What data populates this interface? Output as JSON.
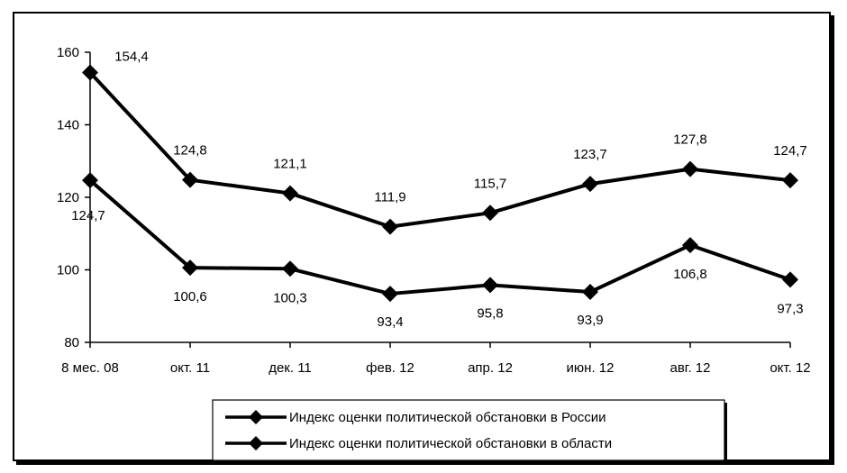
{
  "chart_data": {
    "type": "line",
    "categories": [
      "8 мес. 08",
      "окт. 11",
      "дек. 11",
      "фев. 12",
      "апр. 12",
      "июн. 12",
      "авг. 12",
      "окт. 12"
    ],
    "series": [
      {
        "name": "Индекс оценки политической обстановки в России",
        "values": [
          154.4,
          124.8,
          121.1,
          111.9,
          115.7,
          123.7,
          127.8,
          124.7
        ],
        "labels": [
          "154,4",
          "124,8",
          "121,1",
          "111,9",
          "115,7",
          "123,7",
          "127,8",
          "124,7"
        ],
        "color": "#000000",
        "marker": "diamond"
      },
      {
        "name": "Индекс оценки политической обстановки в области",
        "values": [
          124.7,
          100.6,
          100.3,
          93.4,
          95.8,
          93.9,
          106.8,
          97.3
        ],
        "labels": [
          "124,7",
          "100,6",
          "100,3",
          "93,4",
          "95,8",
          "93,9",
          "106,8",
          "97,3"
        ],
        "color": "#000000",
        "marker": "diamond"
      }
    ],
    "yticks": [
      "80",
      "100",
      "120",
      "140",
      "160"
    ],
    "ylim": [
      80,
      160
    ],
    "grid": false,
    "legend_position": "bottom"
  }
}
